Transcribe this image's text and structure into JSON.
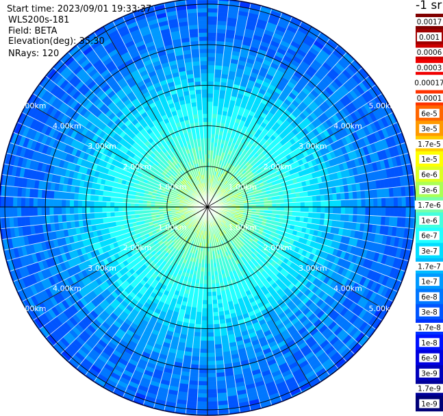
{
  "info": {
    "start_time": "Start time: 2023/09/01 19:33:37",
    "instrument": "WLS200s-181",
    "field": "Field: BETA",
    "elevation": "Elevation(deg): 35.30",
    "nrays": "NRays: 120"
  },
  "colorbar": {
    "title": "-1 sr",
    "labels": [
      "0.0017",
      "0.001",
      "0.0006",
      "0.0003",
      "0.00017",
      "0.0001",
      "6e-5",
      "3e-5",
      "1.7e-5",
      "1e-5",
      "6e-6",
      "3e-6",
      "1.7e-6",
      "1e-6",
      "6e-7",
      "3e-7",
      "1.7e-7",
      "1e-7",
      "6e-8",
      "3e-8",
      "1.7e-8",
      "1e-8",
      "6e-9",
      "3e-9",
      "1.7e-9",
      "1e-9"
    ],
    "colors": [
      "#800000",
      "#a00000",
      "#cc0000",
      "#f00000",
      "#ffffff",
      "#ff3300",
      "#ff6600",
      "#ff9900",
      "#ffcc00",
      "#ffff00",
      "#ddff22",
      "#aaff55",
      "#77ffaa",
      "#44ffdd",
      "#22ffff",
      "#00ddff",
      "#00bbff",
      "#0099ff",
      "#0077ff",
      "#0055ff",
      "#0033ff",
      "#0011ff",
      "#0000e0",
      "#0000bb",
      "#000099",
      "#000077"
    ]
  },
  "chart_data": {
    "type": "heatmap",
    "projection": "polar PPI",
    "nrays": 120,
    "ring_labels": [
      "1.00km",
      "2.00km",
      "3.00km",
      "4.00km",
      "5.00km"
    ],
    "ring_label_angles_deg": [
      -60,
      60,
      120,
      -120
    ],
    "azimuth_lines_deg": [
      0,
      30,
      60,
      90,
      120,
      150,
      180,
      210,
      240,
      270,
      300,
      330
    ],
    "max_range_km": 5.1,
    "radial_profile": {
      "range_km": [
        0.0,
        0.8,
        1.5,
        2.2,
        3.0,
        3.6,
        4.2,
        5.1
      ],
      "color_index": [
        11.5,
        11.8,
        13.0,
        14.0,
        15.5,
        17.0,
        18.0,
        18.5
      ]
    },
    "grid": true
  }
}
